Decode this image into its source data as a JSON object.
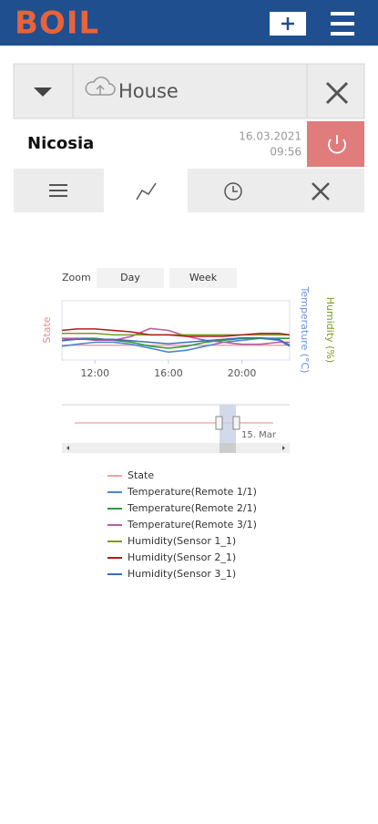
{
  "header": {
    "logo": "BOIL"
  },
  "device": {
    "name": "House",
    "location": "Nicosia",
    "date": "16.03.2021",
    "time": "09:56"
  },
  "chart_data": {
    "type": "line",
    "zoom_label": "Zoom",
    "zoom_buttons": [
      "Day",
      "Week"
    ],
    "ylabel": "Temperature (°C)",
    "y2label": "Humidity (%)",
    "y3label": "State",
    "x": [
      10.2,
      11,
      12,
      13,
      14,
      15,
      16,
      17,
      18,
      19,
      20,
      21,
      22,
      22.6
    ],
    "xlim": [
      10.2,
      22.6
    ],
    "xticks": [
      {
        "value": 12,
        "label": "12:00"
      },
      {
        "value": 16,
        "label": "16:00"
      },
      {
        "value": 20,
        "label": "20:00"
      }
    ],
    "ylim": [
      15,
      30
    ],
    "y2lim": [
      30,
      70
    ],
    "y3lim": [
      -0.5,
      1.5
    ],
    "navigator_label": "15. Mar",
    "series": [
      {
        "name": "State",
        "color": "#f2a0a8",
        "axis": "y3",
        "values": [
          0,
          0,
          0,
          0,
          0,
          0,
          0,
          0,
          0,
          0,
          0,
          0,
          0,
          0
        ]
      },
      {
        "name": "Temperature(Remote 1/1)",
        "color": "#4a86d6",
        "values": [
          18.5,
          19,
          19.5,
          19.5,
          19,
          18,
          17,
          17.5,
          18.5,
          19.5,
          20,
          20.5,
          20,
          18.5
        ]
      },
      {
        "name": "Temperature(Remote 2/1)",
        "color": "#2a9d3a",
        "values": [
          20,
          20.5,
          20.5,
          20,
          19.5,
          18.5,
          18,
          18.5,
          19.5,
          20,
          20.5,
          20.5,
          20.5,
          20.5
        ]
      },
      {
        "name": "Temperature(Remote 3/1)",
        "color": "#b25fa8",
        "values": [
          20.5,
          20.5,
          20,
          20,
          21,
          23,
          22.5,
          21,
          20,
          19.5,
          19,
          19,
          19.5,
          19.5
        ]
      },
      {
        "name": "Humidity(Sensor 1_1)",
        "color": "#7a9a1a",
        "axis": "y2",
        "values": [
          48,
          48,
          48,
          47,
          47,
          47,
          47,
          47,
          47,
          47,
          47,
          47,
          47,
          47
        ]
      },
      {
        "name": "Humidity(Sensor 2_1)",
        "color": "#b01c1c",
        "axis": "y2",
        "values": [
          50,
          51,
          51,
          50,
          49,
          47,
          47,
          46,
          46,
          46,
          47,
          48,
          48,
          47
        ]
      },
      {
        "name": "Humidity(Sensor 3_1)",
        "color": "#3a6fb8",
        "axis": "y2",
        "values": [
          43,
          44,
          44,
          44,
          43,
          42,
          41,
          42,
          43,
          44,
          45,
          45,
          44,
          40
        ]
      }
    ]
  }
}
